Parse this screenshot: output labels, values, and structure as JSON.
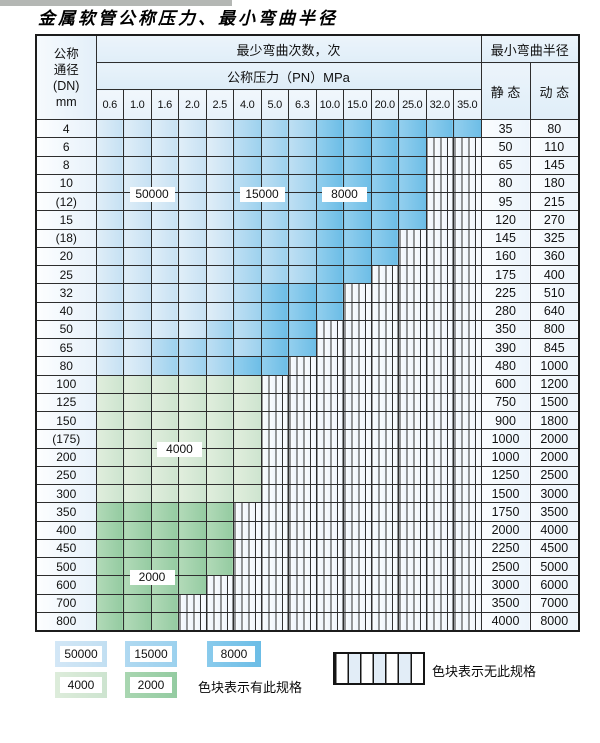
{
  "title": "金属软管公称压力、最小弯曲半径",
  "table": {
    "corner": {
      "line1": "公称",
      "line2": "通径",
      "line3": "(DN)",
      "line4": "mm"
    },
    "bend_cycles_header": "最少弯曲次数，次",
    "pressure_header": "公称压力（PN）MPa",
    "radius_header": "最小弯曲半径",
    "static_label": "静 态",
    "dynamic_label": "动 态",
    "pressure_ticks": [
      "0.6",
      "1.0",
      "1.6",
      "2.0",
      "2.5",
      "4.0",
      "5.0",
      "6.3",
      "10.0",
      "15.0",
      "20.0",
      "25.0",
      "32.0",
      "35.0"
    ],
    "zone_codes": {
      "A": "50000",
      "B": "15000",
      "C": "8000",
      "D": "4000",
      "E": "2000",
      "X": "no-spec"
    },
    "rows": [
      {
        "dn": "4",
        "cells": "AAAAABBBCCCCCC",
        "static": "35",
        "dynamic": "80"
      },
      {
        "dn": "6",
        "cells": "AAAAABBBCCCCXX",
        "static": "50",
        "dynamic": "110"
      },
      {
        "dn": "8",
        "cells": "AAAAABBBCCCCXX",
        "static": "65",
        "dynamic": "145"
      },
      {
        "dn": "10",
        "cells": "AAAAABBBCCCCXX",
        "static": "80",
        "dynamic": "180"
      },
      {
        "dn": "(12)",
        "cells": "AAAAABBBCCCCXX",
        "static": "95",
        "dynamic": "215"
      },
      {
        "dn": "15",
        "cells": "AAAAABBBCCCCXX",
        "static": "120",
        "dynamic": "270"
      },
      {
        "dn": "(18)",
        "cells": "AAAAABBBCCCXXX",
        "static": "145",
        "dynamic": "325"
      },
      {
        "dn": "20",
        "cells": "AAAAABBBCCCXXX",
        "static": "160",
        "dynamic": "360"
      },
      {
        "dn": "25",
        "cells": "AAAAABBBCCXXXX",
        "static": "175",
        "dynamic": "400"
      },
      {
        "dn": "32",
        "cells": "AAAAABCCCXXXXX",
        "static": "225",
        "dynamic": "510"
      },
      {
        "dn": "40",
        "cells": "AAAAABCCCXXXXX",
        "static": "280",
        "dynamic": "640"
      },
      {
        "dn": "50",
        "cells": "AAAABBCCXXXXXX",
        "static": "350",
        "dynamic": "800"
      },
      {
        "dn": "65",
        "cells": "AABBBBCCXXXXXX",
        "static": "390",
        "dynamic": "845"
      },
      {
        "dn": "80",
        "cells": "AABBBCCXXXXXXX",
        "static": "480",
        "dynamic": "1000"
      },
      {
        "dn": "100",
        "cells": "DDDDDDXXXXXXXX",
        "static": "600",
        "dynamic": "1200"
      },
      {
        "dn": "125",
        "cells": "DDDDDDXXXXXXXX",
        "static": "750",
        "dynamic": "1500"
      },
      {
        "dn": "150",
        "cells": "DDDDDDXXXXXXXX",
        "static": "900",
        "dynamic": "1800"
      },
      {
        "dn": "(175)",
        "cells": "DDDDDDXXXXXXXX",
        "static": "1000",
        "dynamic": "2000"
      },
      {
        "dn": "200",
        "cells": "DDDDDDXXXXXXXX",
        "static": "1000",
        "dynamic": "2000"
      },
      {
        "dn": "250",
        "cells": "DDDDDDXXXXXXXX",
        "static": "1250",
        "dynamic": "2500"
      },
      {
        "dn": "300",
        "cells": "DDDDDDXXXXXXXX",
        "static": "1500",
        "dynamic": "3000"
      },
      {
        "dn": "350",
        "cells": "EEEEEXXXXXXXXX",
        "static": "1750",
        "dynamic": "3500"
      },
      {
        "dn": "400",
        "cells": "EEEEEXXXXXXXXX",
        "static": "2000",
        "dynamic": "4000"
      },
      {
        "dn": "450",
        "cells": "EEEEEXXXXXXXXX",
        "static": "2250",
        "dynamic": "4500"
      },
      {
        "dn": "500",
        "cells": "EEEEEXXXXXXXXX",
        "static": "2500",
        "dynamic": "5000"
      },
      {
        "dn": "600",
        "cells": "EEEEXXXXXXXXXX",
        "static": "3000",
        "dynamic": "6000"
      },
      {
        "dn": "700",
        "cells": "EEEXXXXXXXXXXX",
        "static": "3500",
        "dynamic": "7000"
      },
      {
        "dn": "800",
        "cells": "EEEXXXXXXXXXXX",
        "static": "4000",
        "dynamic": "8000"
      }
    ]
  },
  "overlays": [
    {
      "label": "50000",
      "col_start": 1,
      "col_end": 2,
      "row_after": 3
    },
    {
      "label": "15000",
      "col_start": 5,
      "col_end": 6,
      "row_after": 3
    },
    {
      "label": "8000",
      "col_start": 8,
      "col_end": 9,
      "row_after": 3
    },
    {
      "label": "4000",
      "col_start": 2,
      "col_end": 3,
      "row_after": 17
    },
    {
      "label": "2000",
      "col_start": 1,
      "col_end": 2,
      "row_after": 24
    }
  ],
  "legend": {
    "items": [
      {
        "code": "A",
        "label": "50000"
      },
      {
        "code": "B",
        "label": "15000"
      },
      {
        "code": "C",
        "label": "8000"
      },
      {
        "code": "D",
        "label": "4000"
      },
      {
        "code": "E",
        "label": "2000"
      }
    ],
    "has_spec": "色块表示有此规格",
    "no_spec": "色块表示无此规格"
  },
  "colors": {
    "blue_50000": "#c9e2f4",
    "blue_15000": "#a5d4ef",
    "blue_8000": "#79c3e8",
    "green_4000": "#d6e9d4",
    "green_2000": "#9dd1a8",
    "grid_line": "#2e2e2e"
  }
}
